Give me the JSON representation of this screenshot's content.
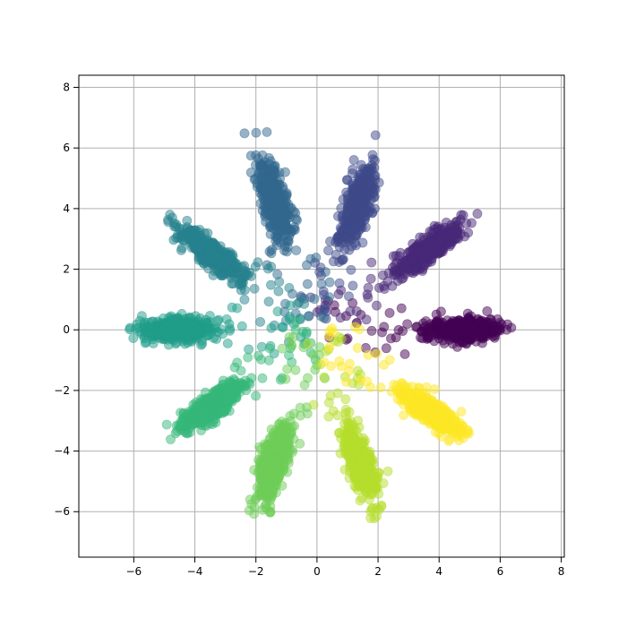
{
  "chart_data": {
    "type": "scatter",
    "title": "",
    "xlabel": "",
    "ylabel": "",
    "xlim": [
      -7.8,
      8.1
    ],
    "ylim": [
      -7.5,
      8.4
    ],
    "x_ticks": [
      -6,
      -4,
      -2,
      0,
      2,
      4,
      6,
      8
    ],
    "y_ticks": [
      -6,
      -4,
      -2,
      0,
      2,
      4,
      6,
      8
    ],
    "x_tick_labels": [
      "−6",
      "−4",
      "−2",
      "0",
      "2",
      "4",
      "6",
      "8"
    ],
    "y_tick_labels": [
      "−6",
      "−4",
      "−2",
      "0",
      "2",
      "4",
      "6",
      "8"
    ],
    "grid": true,
    "legend": "none",
    "point_alpha": 0.5,
    "colormap": "viridis",
    "arms": [
      {
        "angle_deg": 0,
        "color": "#440154",
        "center_radius": 4.8,
        "radial_spread": 1.0,
        "width": 0.18
      },
      {
        "angle_deg": 36,
        "color": "#482878",
        "center_radius": 4.5,
        "radial_spread": 1.1,
        "width": 0.18
      },
      {
        "angle_deg": 72,
        "color": "#3e4989",
        "center_radius": 4.3,
        "radial_spread": 1.2,
        "width": 0.2
      },
      {
        "angle_deg": 108,
        "color": "#31688e",
        "center_radius": 4.5,
        "radial_spread": 1.2,
        "width": 0.2
      },
      {
        "angle_deg": 144,
        "color": "#26828e",
        "center_radius": 4.3,
        "radial_spread": 1.1,
        "width": 0.18
      },
      {
        "angle_deg": 180,
        "color": "#1f9e89",
        "center_radius": 4.5,
        "radial_spread": 1.0,
        "width": 0.18
      },
      {
        "angle_deg": 216,
        "color": "#35b779",
        "center_radius": 4.3,
        "radial_spread": 1.1,
        "width": 0.18
      },
      {
        "angle_deg": 252,
        "color": "#6ece58",
        "center_radius": 4.6,
        "radial_spread": 1.1,
        "width": 0.2
      },
      {
        "angle_deg": 288,
        "color": "#b5de2b",
        "center_radius": 4.6,
        "radial_spread": 1.1,
        "width": 0.2
      },
      {
        "angle_deg": 324,
        "color": "#fde725",
        "center_radius": 4.6,
        "radial_spread": 1.0,
        "width": 0.18
      }
    ],
    "points_per_arm": 420,
    "scatter_points_per_arm": 22,
    "colors": {
      "grid": "#b0b0b0",
      "axes": "#000000",
      "background": "#ffffff"
    }
  }
}
